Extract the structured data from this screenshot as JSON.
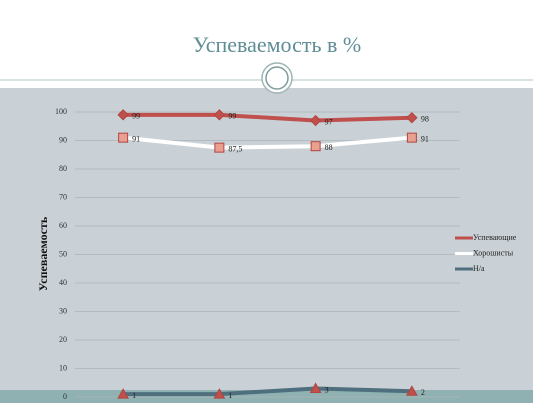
{
  "chart_data": {
    "type": "line",
    "title": "Успеваемость в %",
    "y_label": "Успеваемость",
    "categories": [
      null,
      null,
      null,
      null
    ],
    "series": [
      {
        "name": "Успевающие",
        "color": "#c0504d",
        "marker": "diamond",
        "values": [
          99,
          99,
          97,
          98
        ]
      },
      {
        "name": "Хорошисты",
        "color": "#ffffff",
        "marker": "square",
        "values": [
          91,
          87.5,
          88,
          91
        ],
        "value_labels": [
          "91",
          "87,5",
          "88",
          "91"
        ]
      },
      {
        "name": "Н/а",
        "color": "#4f6f7f",
        "marker": "triangle",
        "values": [
          1,
          1,
          3,
          2
        ]
      }
    ],
    "ylim": [
      0,
      100
    ],
    "yticks": [
      0,
      10,
      20,
      30,
      40,
      50,
      60,
      70,
      80,
      90,
      100
    ],
    "grid": true,
    "legend": "right"
  }
}
